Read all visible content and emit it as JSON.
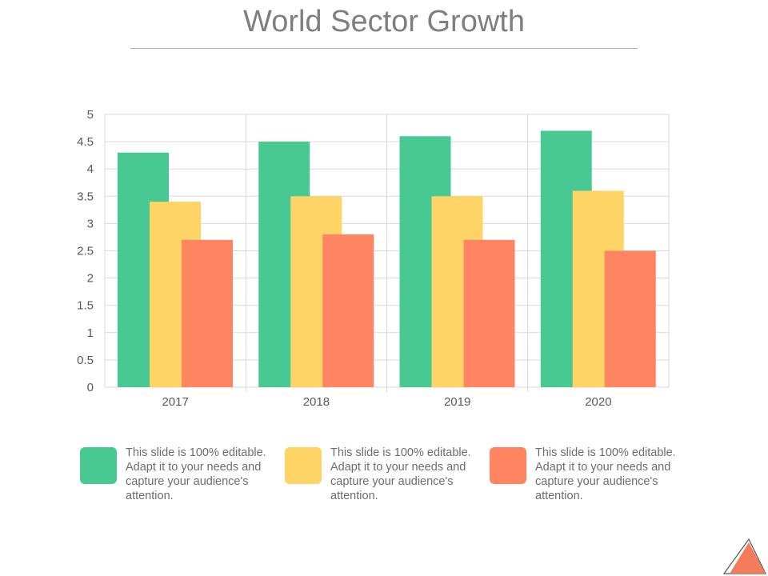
{
  "slide": {
    "title": "World Sector Growth"
  },
  "chart_data": {
    "type": "bar",
    "categories": [
      "2017",
      "2018",
      "2019",
      "2020"
    ],
    "series": [
      {
        "color": "#48c994",
        "values": [
          4.3,
          4.5,
          4.6,
          4.7
        ]
      },
      {
        "color": "#ffd466",
        "values": [
          3.4,
          3.5,
          3.5,
          3.6
        ]
      },
      {
        "color": "#ff8462",
        "values": [
          2.7,
          2.8,
          2.7,
          2.5
        ]
      }
    ],
    "yticks": [
      "0",
      "0.5",
      "1",
      "1.5",
      "2",
      "2.5",
      "3",
      "3.5",
      "4",
      "4.5",
      "5"
    ],
    "ylim": [
      0,
      5
    ],
    "grid": true,
    "legend_position": "bottom"
  },
  "legend": [
    {
      "color": "#48c994",
      "text": "This slide is 100% editable. Adapt it to your needs and capture your audience's attention."
    },
    {
      "color": "#ffd466",
      "text": "This slide is 100% editable. Adapt it to your needs and capture your audience's attention."
    },
    {
      "color": "#ff8462",
      "text": "This slide is 100% editable. Adapt it to your needs and capture your audience's attention."
    }
  ],
  "colors": {
    "title": "#7f7f7f",
    "grid": "#d9d9d9",
    "tick_label": "#595959",
    "logo_fill": "#f47c5b"
  }
}
